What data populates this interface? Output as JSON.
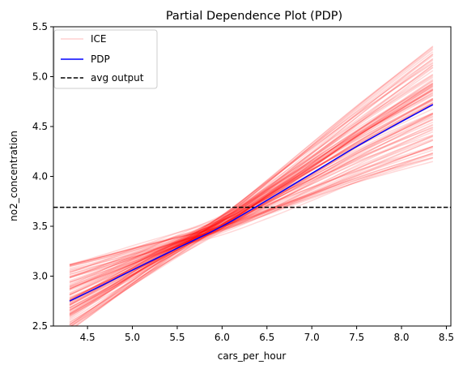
{
  "chart_data": {
    "type": "line",
    "title": "Partial Dependence Plot (PDP)",
    "xlabel": "cars_per_hour",
    "ylabel": "no2_concentration",
    "xlim": [
      4.12,
      8.55
    ],
    "ylim": [
      2.5,
      5.5
    ],
    "xticks": [
      4.5,
      5.0,
      5.5,
      6.0,
      6.5,
      7.0,
      7.5,
      8.0,
      8.5
    ],
    "yticks": [
      2.5,
      3.0,
      3.5,
      4.0,
      4.5,
      5.0,
      5.5
    ],
    "xtick_labels": [
      "4.5",
      "5.0",
      "5.5",
      "6.0",
      "6.5",
      "7.0",
      "7.5",
      "8.0",
      "8.5"
    ],
    "ytick_labels": [
      "2.5",
      "3.0",
      "3.5",
      "4.0",
      "4.5",
      "5.0",
      "5.5"
    ],
    "grid": false,
    "legend": {
      "placement": "top-left",
      "entries": [
        {
          "label": "ICE",
          "color": "#ff0000",
          "style": "solid",
          "alpha": 0.15
        },
        {
          "label": "PDP",
          "color": "#0000ff",
          "style": "solid"
        },
        {
          "label": "avg output",
          "color": "#000000",
          "style": "dashed"
        }
      ]
    },
    "series": [
      {
        "name": "PDP",
        "color": "#0000ff",
        "x": [
          4.3,
          4.6,
          5.0,
          5.5,
          6.0,
          6.5,
          7.0,
          7.5,
          8.0,
          8.35
        ],
        "y": [
          2.75,
          2.88,
          3.06,
          3.28,
          3.5,
          3.76,
          4.03,
          4.3,
          4.55,
          4.72
        ]
      },
      {
        "name": "avg output",
        "color": "#000000",
        "style": "dashed",
        "y": 3.69
      }
    ],
    "ice": {
      "color": "#ff0000",
      "alpha": 0.15,
      "count": 100,
      "x_start": 4.3,
      "x_end": 8.35,
      "y_start_range": [
        2.45,
        3.12
      ],
      "y_end_range": [
        4.2,
        5.28
      ]
    }
  }
}
